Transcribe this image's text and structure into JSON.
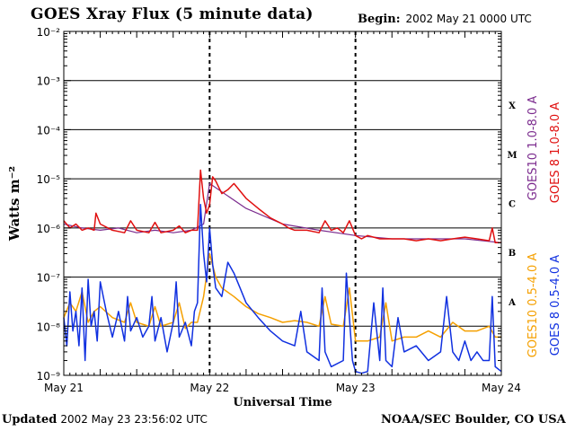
{
  "header": {
    "title": "GOES Xray Flux (5 minute data)",
    "begin_label": "Begin:",
    "begin_value": "2002 May 21 0000 UTC"
  },
  "footer": {
    "updated_label": "Updated",
    "updated_value": "2002 May 23 23:56:02 UTC",
    "credit": "NOAA/SEC Boulder, CO USA"
  },
  "chart_data": {
    "type": "line",
    "title": "GOES Xray Flux (5 minute data)",
    "xlabel": "Universal Time",
    "ylabel": "Watts m⁻²",
    "yscale": "log",
    "ylim": [
      1e-09,
      0.01
    ],
    "xlim": [
      0,
      72
    ],
    "x_unit": "hours since 2002 May 21 0000 UTC",
    "y_ticks": [
      {
        "value": 1e-09,
        "label": "10⁻⁹"
      },
      {
        "value": 1e-08,
        "label": "10⁻⁸"
      },
      {
        "value": 1e-07,
        "label": "10⁻⁷"
      },
      {
        "value": 1e-06,
        "label": "10⁻⁶"
      },
      {
        "value": 1e-05,
        "label": "10⁻⁵"
      },
      {
        "value": 0.0001,
        "label": "10⁻⁴"
      },
      {
        "value": 0.001,
        "label": "10⁻³"
      },
      {
        "value": 0.01,
        "label": "10⁻²"
      }
    ],
    "x_ticks": [
      {
        "value": 0,
        "label": "May 21"
      },
      {
        "value": 24,
        "label": "May 22"
      },
      {
        "value": 48,
        "label": "May 23"
      },
      {
        "value": 72,
        "label": "May 24"
      }
    ],
    "flare_classes": [
      {
        "letter": "A",
        "y": 3.16e-08
      },
      {
        "letter": "B",
        "y": 3.16e-07
      },
      {
        "letter": "C",
        "y": 3.16e-06
      },
      {
        "letter": "M",
        "y": 3.16e-05
      },
      {
        "letter": "X",
        "y": 0.000316
      }
    ],
    "grid": true,
    "series": [
      {
        "name": "GOES10 1.0-8.0 A",
        "color": "#7b2b8e",
        "x": [
          0,
          3,
          6,
          9,
          12,
          15,
          18,
          21,
          23,
          24,
          30,
          36,
          42,
          48,
          54,
          60,
          66,
          72
        ],
        "y": [
          1.2e-06,
          1e-06,
          9e-07,
          1e-06,
          8e-07,
          9e-07,
          8e-07,
          9e-07,
          1.2e-06,
          8e-06,
          2.5e-06,
          1.2e-06,
          9e-07,
          7e-07,
          6e-07,
          6e-07,
          6e-07,
          5e-07
        ]
      },
      {
        "name": "GOES 8 1.0-8.0 A",
        "color": "#e01010",
        "x": [
          0,
          1,
          2,
          3,
          4,
          5,
          5.3,
          6,
          8,
          10,
          11,
          12,
          14,
          15,
          16,
          18,
          19,
          20,
          21,
          22,
          22.5,
          23,
          23.5,
          24,
          24.5,
          25,
          26,
          27,
          28,
          30,
          32,
          34,
          36,
          37,
          38,
          40,
          42,
          43,
          44,
          45,
          46,
          47,
          48,
          49,
          50,
          52,
          54,
          56,
          58,
          60,
          62,
          64,
          66,
          68,
          70,
          70.5,
          71,
          72
        ],
        "y": [
          1.4e-06,
          1e-06,
          1.2e-06,
          9e-07,
          1e-06,
          9e-07,
          2e-06,
          1.2e-06,
          9e-07,
          8e-07,
          1.4e-06,
          9e-07,
          8e-07,
          1.3e-06,
          8e-07,
          9e-07,
          1.1e-06,
          8e-07,
          9e-07,
          9e-07,
          1.5e-05,
          4e-06,
          2e-06,
          3e-06,
          1.1e-05,
          9e-06,
          5e-06,
          6e-06,
          8e-06,
          4e-06,
          2.5e-06,
          1.6e-06,
          1.2e-06,
          1e-06,
          9e-07,
          9e-07,
          8e-07,
          1.4e-06,
          9e-07,
          1e-06,
          8e-07,
          1.4e-06,
          7e-07,
          6e-07,
          7e-07,
          6e-07,
          6e-07,
          6e-07,
          5.5e-07,
          6e-07,
          5.5e-07,
          6e-07,
          6.5e-07,
          6e-07,
          5.5e-07,
          1e-06,
          5e-07,
          5e-07
        ]
      },
      {
        "name": "GOES10 0.5-4.0 A",
        "color": "#f5a000",
        "x": [
          0,
          1,
          2,
          3,
          4,
          5,
          6,
          8,
          10,
          11,
          12,
          14,
          15,
          16,
          18,
          19,
          20,
          21,
          22,
          23,
          24,
          25,
          26,
          28,
          30,
          32,
          34,
          36,
          38,
          40,
          42,
          43,
          44,
          46,
          47,
          48,
          50,
          52,
          53,
          54,
          56,
          58,
          60,
          62,
          64,
          66,
          68,
          70,
          71,
          72
        ],
        "y": [
          1.5e-08,
          3e-08,
          2e-08,
          5e-08,
          1.2e-08,
          2e-08,
          2.5e-08,
          1.5e-08,
          1.2e-08,
          3e-08,
          1.2e-08,
          1e-08,
          2.5e-08,
          1e-08,
          1.2e-08,
          3e-08,
          9e-09,
          1.2e-08,
          1.2e-08,
          4e-08,
          3e-07,
          1e-07,
          6e-08,
          4e-08,
          2.5e-08,
          1.8e-08,
          1.5e-08,
          1.2e-08,
          1.3e-08,
          1.2e-08,
          1e-08,
          4e-08,
          1.1e-08,
          1e-08,
          6e-08,
          5e-09,
          5e-09,
          6e-09,
          3e-08,
          5e-09,
          6e-09,
          6e-09,
          8e-09,
          6e-09,
          1.2e-08,
          8e-09,
          8e-09,
          1e-08,
          6e-09,
          6e-09
        ]
      },
      {
        "name": "GOES 8 0.5-4.0 A",
        "color": "#1030e0",
        "x": [
          0,
          0.5,
          1,
          1.5,
          2,
          2.5,
          3,
          3.5,
          4,
          4.5,
          5,
          5.5,
          6,
          7,
          8,
          9,
          10,
          10.5,
          11,
          12,
          13,
          14,
          14.5,
          15,
          16,
          17,
          18,
          18.5,
          19,
          20,
          21,
          21.5,
          22,
          22.5,
          23,
          23.5,
          24,
          24.5,
          25,
          26,
          27,
          28,
          29,
          30,
          32,
          34,
          36,
          38,
          39,
          40,
          42,
          42.5,
          43,
          44,
          46,
          46.5,
          47,
          47.5,
          48,
          49,
          50,
          51,
          52,
          52.5,
          53,
          54,
          55,
          56,
          58,
          60,
          62,
          63,
          64,
          65,
          66,
          67,
          68,
          69,
          70,
          70.5,
          71,
          72
        ],
        "y": [
          1.5e-08,
          4e-09,
          5e-08,
          8e-09,
          2e-08,
          4e-09,
          6e-08,
          2e-09,
          9e-08,
          1e-08,
          2e-08,
          5e-09,
          8e-08,
          2e-08,
          6e-09,
          2e-08,
          5e-09,
          4e-08,
          8e-09,
          1.5e-08,
          6e-09,
          1e-08,
          4e-08,
          5e-09,
          1.5e-08,
          3e-09,
          1.2e-08,
          8e-08,
          6e-09,
          1.2e-08,
          4e-09,
          2e-08,
          3e-08,
          3e-06,
          3e-07,
          8e-08,
          1e-06,
          1.8e-07,
          6e-08,
          4e-08,
          2e-07,
          1.2e-07,
          6e-08,
          3e-08,
          1.5e-08,
          8e-09,
          5e-09,
          4e-09,
          2e-08,
          3e-09,
          2e-09,
          6e-08,
          3e-09,
          1.5e-09,
          2e-09,
          1.2e-07,
          1.5e-08,
          2e-09,
          1.2e-09,
          1.1e-09,
          1.2e-09,
          3e-08,
          2e-09,
          6e-08,
          2e-09,
          1.5e-09,
          1.5e-08,
          3e-09,
          4e-09,
          2e-09,
          3e-09,
          4e-08,
          3e-09,
          2e-09,
          5e-09,
          2e-09,
          3e-09,
          2e-09,
          2e-09,
          4e-08,
          1.5e-09,
          1.2e-09
        ]
      }
    ]
  }
}
